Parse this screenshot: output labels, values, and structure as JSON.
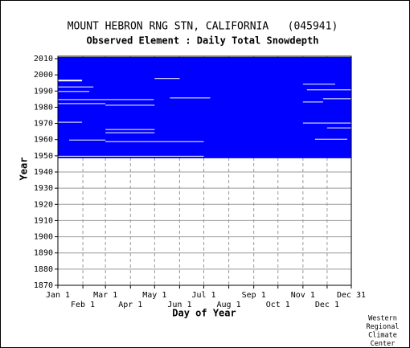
{
  "chart_data": {
    "type": "coverage",
    "title": "MOUNT HEBRON RNG STN, CALIFORNIA   (045941)",
    "subtitle": "Observed Element : Daily Total Snowdepth",
    "x_label": "Day of Year",
    "y_label": "Year",
    "credit": [
      "Western",
      "Regional",
      "Climate",
      "Center"
    ],
    "color": "#0000ff",
    "xlim": [
      1,
      365
    ],
    "ylim": [
      1870,
      2011.5
    ],
    "xticks": [
      {
        "value": 1,
        "label": "Jan 1"
      },
      {
        "value": 32,
        "label": "Feb 1"
      },
      {
        "value": 60,
        "label": "Mar 1"
      },
      {
        "value": 91,
        "label": "Apr 1"
      },
      {
        "value": 121,
        "label": "May 1"
      },
      {
        "value": 152,
        "label": "Jun 1"
      },
      {
        "value": 182,
        "label": "Jul 1"
      },
      {
        "value": 213,
        "label": "Aug 1"
      },
      {
        "value": 244,
        "label": "Sep 1"
      },
      {
        "value": 274,
        "label": "Oct 1"
      },
      {
        "value": 305,
        "label": "Nov 1"
      },
      {
        "value": 335,
        "label": "Dec 1"
      },
      {
        "value": 365,
        "label": "Dec 31"
      }
    ],
    "yticks": [
      1870,
      1880,
      1890,
      1900,
      1910,
      1920,
      1930,
      1940,
      1950,
      1960,
      1970,
      1980,
      1990,
      2000,
      2010
    ],
    "grid": true,
    "observed": [
      [
        1948.5,
        2011,
        1,
        365
      ]
    ],
    "missing": [
      [
        1996,
        1997,
        1,
        31
      ],
      [
        1992.3,
        1992.8,
        1,
        45
      ],
      [
        1989.5,
        1990,
        1,
        40
      ],
      [
        1984.5,
        1985,
        1,
        120
      ],
      [
        1982,
        1982.5,
        1,
        60
      ],
      [
        1981,
        1981.5,
        60,
        121
      ],
      [
        1997.5,
        1998,
        121,
        152
      ],
      [
        1985.5,
        1986,
        140,
        190
      ],
      [
        1970.5,
        1971,
        1,
        31
      ],
      [
        1966,
        1966.5,
        60,
        121
      ],
      [
        1964,
        1964.5,
        60,
        121
      ],
      [
        1958.5,
        1959,
        60,
        182
      ],
      [
        1959.5,
        1960,
        15,
        60
      ],
      [
        1949.5,
        1950,
        1,
        182
      ],
      [
        1994,
        1994.5,
        305,
        345
      ],
      [
        1990.5,
        1991,
        310,
        365
      ],
      [
        1985,
        1985.5,
        330,
        365
      ],
      [
        1983,
        1983.5,
        305,
        330
      ],
      [
        1970,
        1970.5,
        305,
        365
      ],
      [
        1967,
        1967.5,
        335,
        365
      ],
      [
        1960,
        1960.5,
        320,
        360
      ]
    ]
  }
}
